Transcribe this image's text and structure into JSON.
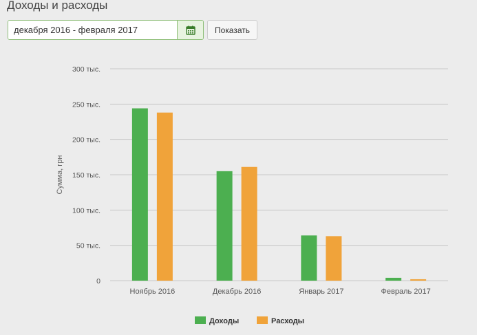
{
  "page": {
    "title": "Доходы и расходы"
  },
  "filter": {
    "date_range": "декабря 2016 - февраля 2017",
    "calendar_icon": "calendar-icon",
    "show_label": "Показать"
  },
  "colors": {
    "income": "#4caf50",
    "expense": "#f0a33a",
    "grid": "#c8c8c8"
  },
  "chart_data": {
    "type": "bar",
    "categories": [
      "Ноябрь 2016",
      "Декабрь 2016",
      "Январь 2017",
      "Февраль 2017"
    ],
    "series": [
      {
        "name": "Доходы",
        "values": [
          244000,
          155000,
          64000,
          4000
        ]
      },
      {
        "name": "Расходы",
        "values": [
          238000,
          161000,
          63000,
          2000
        ]
      }
    ],
    "yticks": [
      0,
      50000,
      100000,
      150000,
      200000,
      250000,
      300000
    ],
    "ytick_labels": [
      "0",
      "50 тыс.",
      "100 тыс.",
      "150 тыс.",
      "200 тыс.",
      "250 тыс.",
      "300 тыс."
    ],
    "ylabel": "Сумма, грн",
    "xlabel": "",
    "ylim": [
      0,
      300000
    ],
    "grid": true,
    "legend": "bottom-center"
  }
}
